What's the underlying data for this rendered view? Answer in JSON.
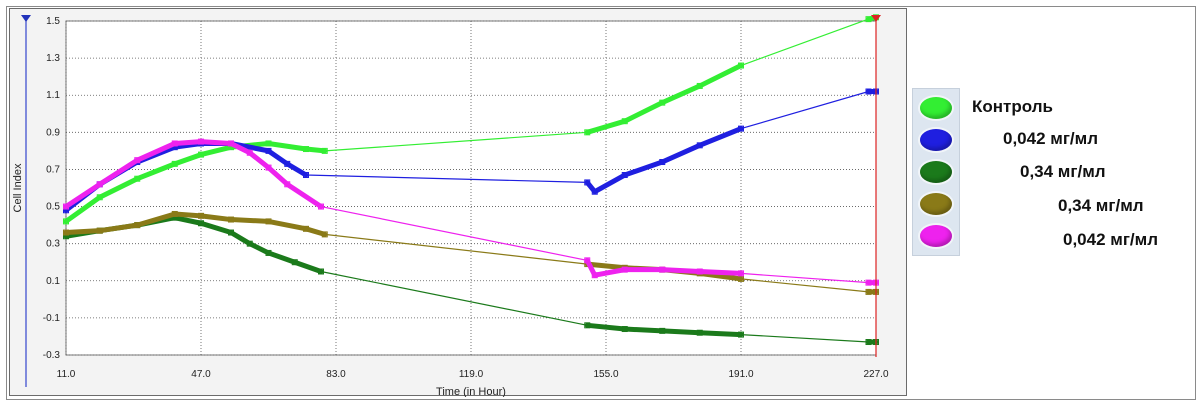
{
  "chart_data": {
    "type": "line",
    "xlabel": "Time (in Hour)",
    "ylabel": "Cell Index",
    "xlim": [
      11.0,
      227.0
    ],
    "ylim": [
      -0.3,
      1.5
    ],
    "x_ticks": [
      "11.0",
      "47.0",
      "83.0",
      "119.0",
      "155.0",
      "191.0",
      "227.0"
    ],
    "y_ticks": [
      "-0.3",
      "-0.1",
      "0.1",
      "0.3",
      "0.5",
      "0.7",
      "0.9",
      "1.1",
      "1.3",
      "1.5"
    ],
    "grid": true,
    "legend_position": "right",
    "cursor_x": 227.0,
    "series": [
      {
        "name": "Контроль",
        "color": "#33ee33",
        "points": [
          [
            11,
            0.42
          ],
          [
            20,
            0.55
          ],
          [
            30,
            0.65
          ],
          [
            40,
            0.73
          ],
          [
            47,
            0.78
          ],
          [
            55,
            0.82
          ],
          [
            65,
            0.84
          ],
          [
            75,
            0.81
          ],
          [
            80,
            0.8
          ],
          [
            150,
            0.9
          ],
          [
            160,
            0.96
          ],
          [
            170,
            1.06
          ],
          [
            180,
            1.15
          ],
          [
            191,
            1.26
          ],
          [
            225,
            1.51
          ],
          [
            227,
            1.52
          ]
        ]
      },
      {
        "name": "0,042 мг/мл",
        "color": "#1f1fe0",
        "points": [
          [
            11,
            0.48
          ],
          [
            20,
            0.62
          ],
          [
            30,
            0.74
          ],
          [
            40,
            0.82
          ],
          [
            47,
            0.84
          ],
          [
            55,
            0.84
          ],
          [
            65,
            0.8
          ],
          [
            70,
            0.73
          ],
          [
            75,
            0.67
          ],
          [
            150,
            0.63
          ],
          [
            152,
            0.58
          ],
          [
            160,
            0.67
          ],
          [
            170,
            0.74
          ],
          [
            180,
            0.83
          ],
          [
            191,
            0.92
          ],
          [
            225,
            1.12
          ],
          [
            227,
            1.12
          ]
        ]
      },
      {
        "name": "0,34 мг/мл",
        "color": "#1b7a1b",
        "points": [
          [
            11,
            0.34
          ],
          [
            20,
            0.37
          ],
          [
            30,
            0.4
          ],
          [
            40,
            0.44
          ],
          [
            47,
            0.41
          ],
          [
            55,
            0.36
          ],
          [
            60,
            0.3
          ],
          [
            65,
            0.25
          ],
          [
            72,
            0.2
          ],
          [
            79,
            0.15
          ],
          [
            150,
            -0.14
          ],
          [
            160,
            -0.16
          ],
          [
            170,
            -0.17
          ],
          [
            180,
            -0.18
          ],
          [
            191,
            -0.19
          ],
          [
            225,
            -0.23
          ],
          [
            227,
            -0.23
          ]
        ]
      },
      {
        "name": "0,34 мг/мл",
        "color": "#8a7a18",
        "points": [
          [
            11,
            0.36
          ],
          [
            20,
            0.37
          ],
          [
            30,
            0.4
          ],
          [
            40,
            0.46
          ],
          [
            47,
            0.45
          ],
          [
            55,
            0.43
          ],
          [
            65,
            0.42
          ],
          [
            75,
            0.38
          ],
          [
            80,
            0.35
          ],
          [
            150,
            0.19
          ],
          [
            160,
            0.17
          ],
          [
            170,
            0.16
          ],
          [
            180,
            0.14
          ],
          [
            191,
            0.11
          ],
          [
            225,
            0.04
          ],
          [
            227,
            0.04
          ]
        ]
      },
      {
        "name": "0,042 мг/мл",
        "color": "#ee22ee",
        "points": [
          [
            11,
            0.5
          ],
          [
            20,
            0.62
          ],
          [
            30,
            0.75
          ],
          [
            40,
            0.84
          ],
          [
            47,
            0.85
          ],
          [
            55,
            0.84
          ],
          [
            60,
            0.79
          ],
          [
            65,
            0.71
          ],
          [
            70,
            0.62
          ],
          [
            79,
            0.5
          ],
          [
            150,
            0.21
          ],
          [
            152,
            0.13
          ],
          [
            160,
            0.16
          ],
          [
            170,
            0.16
          ],
          [
            180,
            0.15
          ],
          [
            191,
            0.14
          ],
          [
            225,
            0.09
          ],
          [
            227,
            0.09
          ]
        ]
      }
    ]
  }
}
